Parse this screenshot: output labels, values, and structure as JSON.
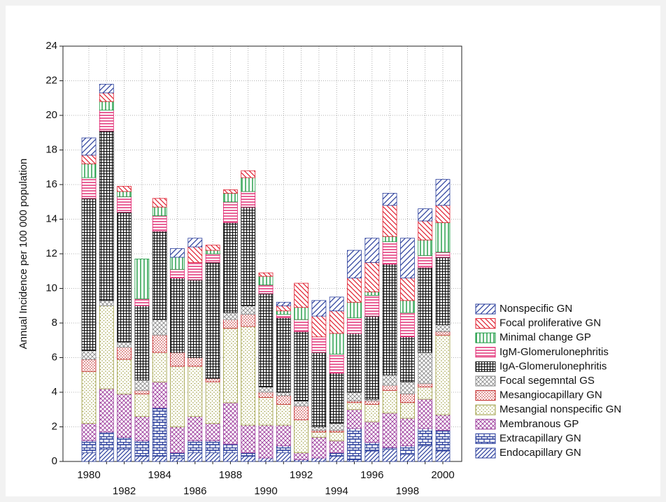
{
  "chart_data": {
    "type": "stacked_bar",
    "y_label": "Annual Incidence per 100 000 population",
    "categories": [
      "1980",
      null,
      "1982",
      null,
      "1984",
      null,
      "1986",
      null,
      "1988",
      null,
      "1990",
      null,
      "1992",
      null,
      "1994",
      null,
      "1996",
      null,
      "1998",
      null,
      "2000"
    ],
    "ylim": [
      0,
      24
    ],
    "yticks": [
      0,
      2,
      4,
      6,
      8,
      10,
      12,
      14,
      16,
      18,
      20,
      22,
      24
    ],
    "grid": true,
    "legend": "lower right",
    "series": [
      {
        "name": "Endocapillary GN",
        "color": "#2b3f9c",
        "hatch": "diagonal",
        "values": [
          0.5,
          0.7,
          0.7,
          0.3,
          0.3,
          0.2,
          0.5,
          0.5,
          0.5,
          0.3,
          0.2,
          0.5,
          0.1,
          0.2,
          0.3,
          0.1,
          0.6,
          0.7,
          0.4,
          0.9,
          0.6
        ]
      },
      {
        "name": "Extracapillary GN",
        "color": "#2b3f9c",
        "hatch": "brick",
        "values": [
          0.7,
          1.0,
          0.7,
          0.9,
          2.8,
          0.3,
          0.7,
          0.7,
          0.5,
          0.2,
          0,
          0.4,
          0,
          0,
          0.2,
          1.8,
          0.5,
          0.1,
          0.5,
          1.0,
          1.2
        ]
      },
      {
        "name": "Membranous GP",
        "color": "#9c3c9c",
        "hatch": "crosshatch",
        "values": [
          1.0,
          2.5,
          2.5,
          1.4,
          1.5,
          1.5,
          1.4,
          1.0,
          2.4,
          1.6,
          1.9,
          1.2,
          0.4,
          1.2,
          0.7,
          1.1,
          1.2,
          2.0,
          1.6,
          1.7,
          0.9
        ]
      },
      {
        "name": "Mesangial nonspecific GN",
        "color": "#9a9a3a",
        "hatch": "dots",
        "values": [
          3.0,
          4.8,
          2.0,
          1.3,
          1.7,
          3.5,
          2.9,
          2.4,
          4.3,
          5.7,
          1.6,
          1.2,
          1.9,
          0.3,
          0.5,
          0.4,
          1.0,
          1.3,
          0.9,
          0.7,
          4.6
        ]
      },
      {
        "name": "Mesangiocapillary GN",
        "color": "#c02020",
        "hatch": "dense-dots",
        "values": [
          0.7,
          0,
          0.7,
          0.2,
          1.0,
          0.8,
          0.5,
          0.2,
          0.5,
          0.7,
          0.3,
          0.5,
          0.8,
          0.1,
          0.1,
          0.1,
          0.2,
          0.3,
          0.5,
          0.2,
          0.2
        ]
      },
      {
        "name": "Focal segemntal GS",
        "color": "#8a8a8a",
        "hatch": "crosshatch",
        "values": [
          0.5,
          0.3,
          0.3,
          0.6,
          0.9,
          0,
          0,
          0,
          0.4,
          0.5,
          0.3,
          0.2,
          0.3,
          0.2,
          0.4,
          0.5,
          0.1,
          0.6,
          0.7,
          1.8,
          0.4
        ]
      },
      {
        "name": "IgA-Glomerulonephritis",
        "color": "#111111",
        "hatch": "grid",
        "values": [
          8.8,
          9.8,
          7.5,
          4.3,
          5.1,
          4.3,
          4.5,
          6.7,
          5.2,
          5.7,
          5.4,
          4.3,
          4.0,
          4.3,
          2.9,
          3.4,
          4.8,
          6.4,
          2.6,
          4.9,
          3.9
        ]
      },
      {
        "name": "IgM-Glomerulonephritis",
        "color": "#e0206c",
        "hatch": "horizontal",
        "values": [
          1.2,
          1.2,
          0.9,
          0.4,
          0.9,
          0.5,
          1.0,
          0.5,
          1.2,
          0.9,
          0.5,
          0.2,
          0.7,
          0.9,
          1.1,
          0.9,
          1.2,
          1.3,
          1.4,
          0.7,
          0.3
        ]
      },
      {
        "name": "Minimal change GP",
        "color": "#1a9a40",
        "hatch": "vertical",
        "values": [
          0.8,
          0.5,
          0.3,
          2.3,
          0.5,
          0.7,
          0,
          0.2,
          0.5,
          0.8,
          0.5,
          0.2,
          0.7,
          0,
          1.2,
          0.9,
          0.2,
          0.3,
          0.7,
          0.9,
          1.7
        ]
      },
      {
        "name": "Focal proliferative GN",
        "color": "#e02030",
        "hatch": "backslash",
        "values": [
          0.5,
          0.5,
          0.3,
          0,
          0.5,
          0,
          0.9,
          0.3,
          0.2,
          0.4,
          0.2,
          0.3,
          1.4,
          1.2,
          1.3,
          1.4,
          1.7,
          1.8,
          1.3,
          1.1,
          1.0
        ]
      },
      {
        "name": "Nonspecific GN",
        "color": "#2b3f9c",
        "hatch": "wide-diagonal",
        "values": [
          1.0,
          0.5,
          0,
          0,
          0,
          0.5,
          0.5,
          0,
          0,
          0,
          0,
          0.2,
          0,
          0.9,
          0.8,
          1.6,
          1.4,
          0.7,
          2.3,
          0.7,
          1.5
        ]
      }
    ]
  }
}
